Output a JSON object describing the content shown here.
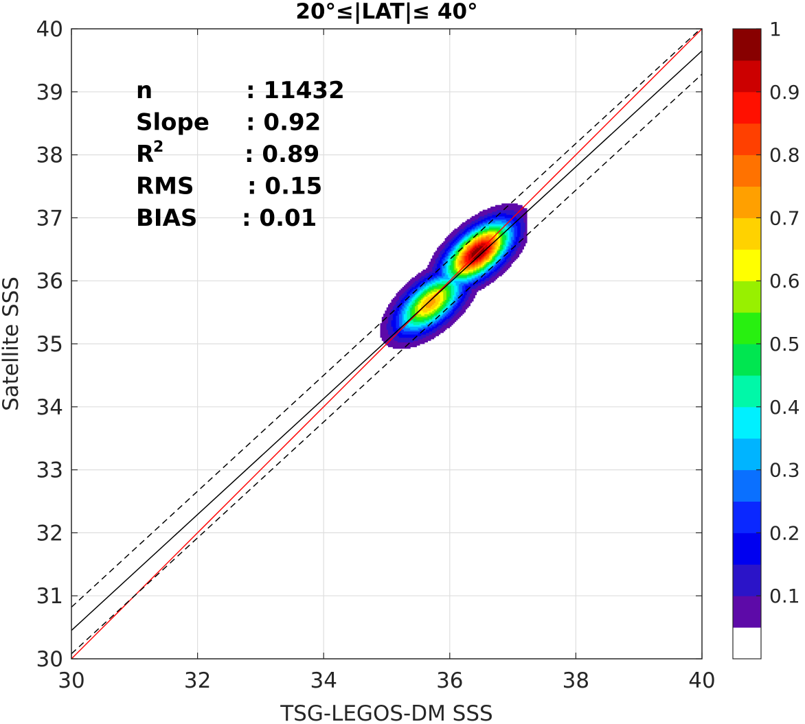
{
  "chart_data": {
    "type": "contour-scatter",
    "title": "20°≤|LAT|≤ 40°",
    "xlabel": "TSG-LEGOS-DM SSS",
    "ylabel": "Satellite SSS",
    "xlim": [
      30,
      40
    ],
    "ylim": [
      30,
      40
    ],
    "xticks": [
      "30",
      "32",
      "34",
      "36",
      "38",
      "40"
    ],
    "yticks": [
      "30",
      "31",
      "32",
      "33",
      "34",
      "35",
      "36",
      "37",
      "38",
      "39",
      "40"
    ],
    "grid": true,
    "stats": [
      {
        "label": "n",
        "value": ": 11432"
      },
      {
        "label": "Slope",
        "value": ": 0.92"
      },
      {
        "label": "R",
        "sup": "2",
        "value": ": 0.89"
      },
      {
        "label": "RMS",
        "value": ": 0.15"
      },
      {
        "label": "BIAS",
        "value": ": 0.01"
      }
    ],
    "lines": [
      {
        "kind": "identity",
        "color": "#ff0000",
        "x": [
          30,
          40
        ],
        "y": [
          30,
          40
        ]
      },
      {
        "kind": "fit",
        "color": "#000000",
        "x": [
          30,
          40
        ],
        "y": [
          30.45,
          39.65
        ]
      },
      {
        "kind": "fit-upper",
        "color": "#000000",
        "dash": true,
        "x": [
          30,
          40
        ],
        "y": [
          30.82,
          40.02
        ]
      },
      {
        "kind": "fit-lower",
        "color": "#000000",
        "dash": true,
        "x": [
          30,
          40
        ],
        "y": [
          30.08,
          39.28
        ]
      }
    ],
    "density_peaks": [
      {
        "x": 36.45,
        "y": 36.45,
        "value": 1.0,
        "sx": 0.22,
        "sy": 0.2
      },
      {
        "x": 35.7,
        "y": 35.65,
        "value": 0.72,
        "sx": 0.22,
        "sy": 0.2
      }
    ],
    "density_ridge": {
      "x0": 35.2,
      "y0": 35.1,
      "x1": 36.85,
      "y1": 36.9
    },
    "colorbar": {
      "min": 0,
      "max": 1,
      "levels": 20,
      "ticks": [
        "0.1",
        "0.2",
        "0.3",
        "0.4",
        "0.5",
        "0.6",
        "0.7",
        "0.8",
        "0.9",
        "1"
      ],
      "colors": [
        "#ffffff",
        "#5d0aa8",
        "#2b14c8",
        "#0000f0",
        "#0a28ff",
        "#0a70ff",
        "#00b4ff",
        "#00f0ff",
        "#00f8a8",
        "#00e650",
        "#28f010",
        "#98f000",
        "#ffff00",
        "#ffd200",
        "#ffa000",
        "#ff7200",
        "#ff4000",
        "#ff1000",
        "#cc0000",
        "#880000"
      ]
    }
  }
}
